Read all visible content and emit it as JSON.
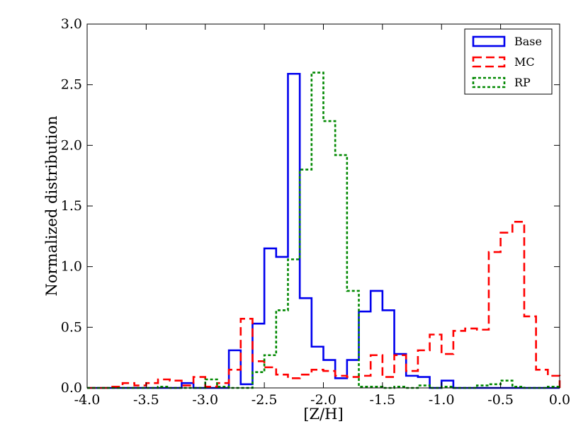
{
  "chart_data": {
    "type": "line",
    "style": "step-histogram",
    "title": "",
    "xlabel": "[Z/H]",
    "ylabel": "Normalized distribution",
    "xlim": [
      -4.0,
      0.0
    ],
    "ylim": [
      0.0,
      3.0
    ],
    "x_ticks": [
      "-4.0",
      "-3.5",
      "-3.0",
      "-2.5",
      "-2.0",
      "-1.5",
      "-1.0",
      "-0.5",
      "0.0"
    ],
    "y_ticks": [
      "0.0",
      "0.5",
      "1.0",
      "1.5",
      "2.0",
      "2.5",
      "3.0"
    ],
    "grid": false,
    "legend_position": "top-right",
    "bin_edges": [
      -4.0,
      -3.9,
      -3.8,
      -3.7,
      -3.6,
      -3.5,
      -3.4,
      -3.3,
      -3.2,
      -3.1,
      -3.0,
      -2.9,
      -2.8,
      -2.7,
      -2.6,
      -2.5,
      -2.4,
      -2.3,
      -2.2,
      -2.1,
      -2.0,
      -1.9,
      -1.8,
      -1.7,
      -1.6,
      -1.5,
      -1.4,
      -1.3,
      -1.2,
      -1.1,
      -1.0,
      -0.9,
      -0.8,
      -0.7,
      -0.6,
      -0.5,
      -0.4,
      -0.3,
      -0.2,
      -0.1,
      0.0
    ],
    "series": [
      {
        "name": "Base",
        "color": "#0000ee",
        "dash": "solid",
        "bins": [
          [
            -3.2,
            -3.1,
            0.04
          ],
          [
            -2.8,
            -2.7,
            0.31
          ],
          [
            -2.7,
            -2.6,
            0.03
          ],
          [
            -2.6,
            -2.5,
            0.53
          ],
          [
            -2.5,
            -2.4,
            1.15
          ],
          [
            -2.4,
            -2.3,
            1.08
          ],
          [
            -2.3,
            -2.2,
            2.59
          ],
          [
            -2.2,
            -2.1,
            0.74
          ],
          [
            -2.1,
            -2.0,
            0.34
          ],
          [
            -2.0,
            -1.9,
            0.23
          ],
          [
            -1.9,
            -1.8,
            0.08
          ],
          [
            -1.8,
            -1.7,
            0.23
          ],
          [
            -1.7,
            -1.6,
            0.63
          ],
          [
            -1.6,
            -1.5,
            0.8
          ],
          [
            -1.5,
            -1.4,
            0.64
          ],
          [
            -1.4,
            -1.3,
            0.28
          ],
          [
            -1.3,
            -1.2,
            0.1
          ],
          [
            -1.2,
            -1.1,
            0.09
          ],
          [
            -1.0,
            -0.9,
            0.06
          ]
        ]
      },
      {
        "name": "MC",
        "color": "#ff0000",
        "dash": "dashed",
        "bins": [
          [
            -3.8,
            -3.7,
            0.01
          ],
          [
            -3.7,
            -3.6,
            0.04
          ],
          [
            -3.6,
            -3.5,
            0.02
          ],
          [
            -3.5,
            -3.4,
            0.04
          ],
          [
            -3.4,
            -3.3,
            0.07
          ],
          [
            -3.3,
            -3.2,
            0.06
          ],
          [
            -3.2,
            -3.1,
            0.02
          ],
          [
            -3.1,
            -3.0,
            0.09
          ],
          [
            -3.0,
            -2.9,
            0.01
          ],
          [
            -2.9,
            -2.8,
            0.04
          ],
          [
            -2.8,
            -2.7,
            0.15
          ],
          [
            -2.7,
            -2.6,
            0.57
          ],
          [
            -2.6,
            -2.5,
            0.22
          ],
          [
            -2.5,
            -2.4,
            0.17
          ],
          [
            -2.4,
            -2.3,
            0.11
          ],
          [
            -2.3,
            -2.2,
            0.08
          ],
          [
            -2.2,
            -2.1,
            0.11
          ],
          [
            -2.1,
            -2.0,
            0.15
          ],
          [
            -2.0,
            -1.9,
            0.14
          ],
          [
            -1.9,
            -1.8,
            0.1
          ],
          [
            -1.8,
            -1.7,
            0.09
          ],
          [
            -1.7,
            -1.6,
            0.1
          ],
          [
            -1.6,
            -1.5,
            0.27
          ],
          [
            -1.5,
            -1.4,
            0.09
          ],
          [
            -1.4,
            -1.3,
            0.27
          ],
          [
            -1.3,
            -1.2,
            0.14
          ],
          [
            -1.2,
            -1.1,
            0.31
          ],
          [
            -1.1,
            -1.0,
            0.44
          ],
          [
            -1.0,
            -0.9,
            0.28
          ],
          [
            -0.9,
            -0.8,
            0.47
          ],
          [
            -0.8,
            -0.7,
            0.49
          ],
          [
            -0.7,
            -0.6,
            0.48
          ],
          [
            -0.6,
            -0.5,
            1.12
          ],
          [
            -0.5,
            -0.4,
            1.28
          ],
          [
            -0.4,
            -0.3,
            1.37
          ],
          [
            -0.3,
            -0.2,
            0.59
          ],
          [
            -0.2,
            -0.1,
            0.15
          ],
          [
            -0.1,
            0.0,
            0.1
          ]
        ]
      },
      {
        "name": "RP",
        "color": "#008800",
        "dash": "dotted",
        "bins": [
          [
            -3.4,
            -3.3,
            0.01
          ],
          [
            -3.0,
            -2.9,
            0.07
          ],
          [
            -2.9,
            -2.8,
            0.01
          ],
          [
            -2.6,
            -2.5,
            0.13
          ],
          [
            -2.5,
            -2.4,
            0.27
          ],
          [
            -2.4,
            -2.3,
            0.64
          ],
          [
            -2.3,
            -2.2,
            1.06
          ],
          [
            -2.2,
            -2.1,
            1.8
          ],
          [
            -2.1,
            -2.0,
            2.6
          ],
          [
            -2.0,
            -1.9,
            2.2
          ],
          [
            -1.9,
            -1.8,
            1.92
          ],
          [
            -1.8,
            -1.7,
            0.8
          ],
          [
            -1.7,
            -1.6,
            0.01
          ],
          [
            -1.6,
            -1.5,
            0.01
          ],
          [
            -1.4,
            -1.3,
            0.01
          ],
          [
            -1.2,
            -1.1,
            0.02
          ],
          [
            -1.0,
            -0.9,
            0.01
          ],
          [
            -0.7,
            -0.6,
            0.02
          ],
          [
            -0.6,
            -0.5,
            0.03
          ],
          [
            -0.5,
            -0.4,
            0.06
          ],
          [
            -0.4,
            -0.3,
            0.01
          ],
          [
            -0.1,
            0.0,
            0.01
          ]
        ]
      }
    ]
  }
}
